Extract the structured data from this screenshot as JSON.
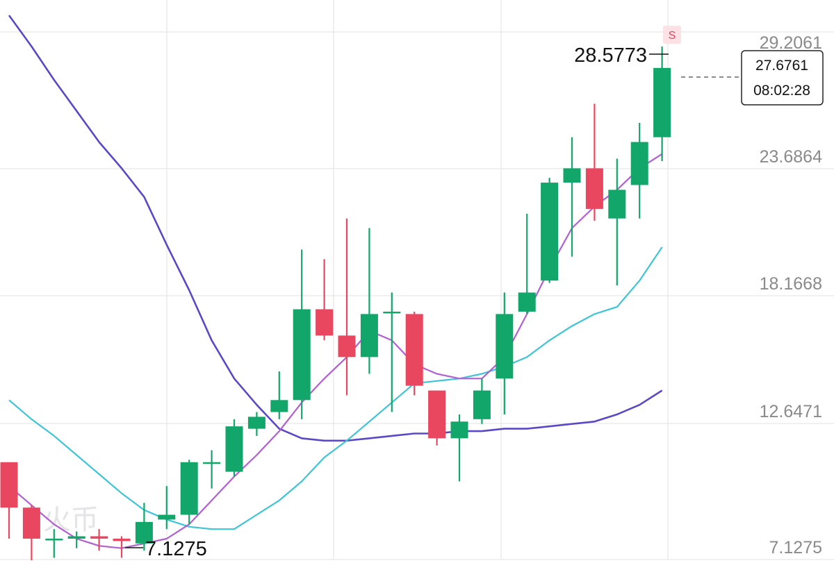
{
  "chart_data": {
    "type": "candlestick",
    "y_axis": {
      "ticks": [
        "29.2061",
        "23.6864",
        "18.1668",
        "12.6471",
        "7.1275"
      ],
      "ylim": [
        7.1275,
        29.2061
      ],
      "position": "right"
    },
    "annotations": {
      "high_label": "28.5773",
      "low_label": "7.1275"
    },
    "last_price_tag": {
      "price": "27.6761",
      "time": "08:02:28"
    },
    "signal_marker": "S",
    "watermark": "火币",
    "colors": {
      "up": "#12a66a",
      "down": "#e8475f",
      "ma_short": "#b25ed3",
      "ma_medium": "#3cc4d8",
      "ma_long": "#5a48c8"
    },
    "candles": [
      {
        "o": 11.2,
        "h": 11.2,
        "c": 9.3,
        "l": 8.0
      },
      {
        "o": 9.3,
        "h": 9.4,
        "c": 8.0,
        "l": 7.1
      },
      {
        "o": 8.0,
        "h": 8.4,
        "c": 8.0,
        "l": 7.2
      },
      {
        "o": 8.0,
        "h": 8.3,
        "c": 8.1,
        "l": 7.6
      },
      {
        "o": 8.1,
        "h": 8.4,
        "c": 8.0,
        "l": 7.5
      },
      {
        "o": 8.0,
        "h": 8.1,
        "c": 7.9,
        "l": 7.2
      },
      {
        "o": 7.8,
        "h": 9.5,
        "c": 8.7,
        "l": 7.5
      },
      {
        "o": 8.8,
        "h": 10.2,
        "c": 9.0,
        "l": 8.4
      },
      {
        "o": 9.0,
        "h": 11.3,
        "c": 11.2,
        "l": 8.6
      },
      {
        "o": 11.2,
        "h": 11.7,
        "c": 11.2,
        "l": 10.1
      },
      {
        "o": 10.8,
        "h": 13.0,
        "c": 12.7,
        "l": 10.6
      },
      {
        "o": 12.6,
        "h": 13.3,
        "c": 13.1,
        "l": 12.3
      },
      {
        "o": 13.3,
        "h": 15.0,
        "c": 13.8,
        "l": 13.0
      },
      {
        "o": 13.8,
        "h": 20.1,
        "c": 17.6,
        "l": 13.0
      },
      {
        "o": 17.6,
        "h": 19.7,
        "c": 16.5,
        "l": 16.3
      },
      {
        "o": 16.5,
        "h": 21.4,
        "c": 15.6,
        "l": 14.0
      },
      {
        "o": 15.6,
        "h": 21.0,
        "c": 17.4,
        "l": 14.9
      },
      {
        "o": 17.5,
        "h": 18.3,
        "c": 17.5,
        "l": 13.3
      },
      {
        "o": 17.4,
        "h": 17.5,
        "c": 14.4,
        "l": 14.0
      },
      {
        "o": 14.2,
        "h": 14.2,
        "c": 12.2,
        "l": 11.9
      },
      {
        "o": 12.2,
        "h": 13.2,
        "c": 12.9,
        "l": 10.4
      },
      {
        "o": 13.0,
        "h": 14.7,
        "c": 14.2,
        "l": 12.8
      },
      {
        "o": 14.7,
        "h": 18.3,
        "c": 17.4,
        "l": 13.2
      },
      {
        "o": 17.5,
        "h": 21.6,
        "c": 18.3,
        "l": 17.4
      },
      {
        "o": 18.8,
        "h": 23.1,
        "c": 22.9,
        "l": 18.7
      },
      {
        "o": 22.9,
        "h": 24.8,
        "c": 23.5,
        "l": 19.8
      },
      {
        "o": 23.5,
        "h": 26.2,
        "c": 21.8,
        "l": 21.3
      },
      {
        "o": 21.4,
        "h": 23.9,
        "c": 22.6,
        "l": 18.6
      },
      {
        "o": 22.8,
        "h": 25.4,
        "c": 24.6,
        "l": 21.4
      },
      {
        "o": 24.8,
        "h": 28.6,
        "c": 27.7,
        "l": 23.8
      }
    ],
    "ma_short": [
      10.2,
      9.4,
      8.6,
      8.0,
      7.7,
      7.6,
      7.8,
      8.0,
      8.6,
      9.6,
      10.6,
      11.5,
      12.5,
      13.7,
      14.7,
      15.6,
      16.7,
      16.3,
      15.3,
      14.9,
      14.7,
      14.7,
      15.6,
      17.4,
      19.3,
      21.0,
      21.9,
      22.6,
      23.5,
      24.1
    ],
    "ma_medium": [
      13.8,
      13.0,
      12.3,
      11.5,
      10.7,
      9.9,
      9.2,
      8.8,
      8.5,
      8.4,
      8.4,
      9.0,
      9.6,
      10.4,
      11.4,
      12.1,
      12.9,
      13.7,
      14.5,
      14.6,
      14.7,
      14.9,
      15.2,
      15.6,
      16.3,
      16.9,
      17.4,
      17.7,
      18.8,
      20.2
    ],
    "ma_long": [
      29.9,
      28.6,
      27.2,
      25.9,
      24.6,
      23.5,
      22.3,
      20.3,
      18.4,
      16.3,
      14.7,
      13.6,
      12.6,
      12.2,
      12.1,
      12.1,
      12.2,
      12.3,
      12.4,
      12.4,
      12.5,
      12.5,
      12.6,
      12.6,
      12.7,
      12.8,
      12.9,
      13.2,
      13.6,
      14.2
    ]
  }
}
